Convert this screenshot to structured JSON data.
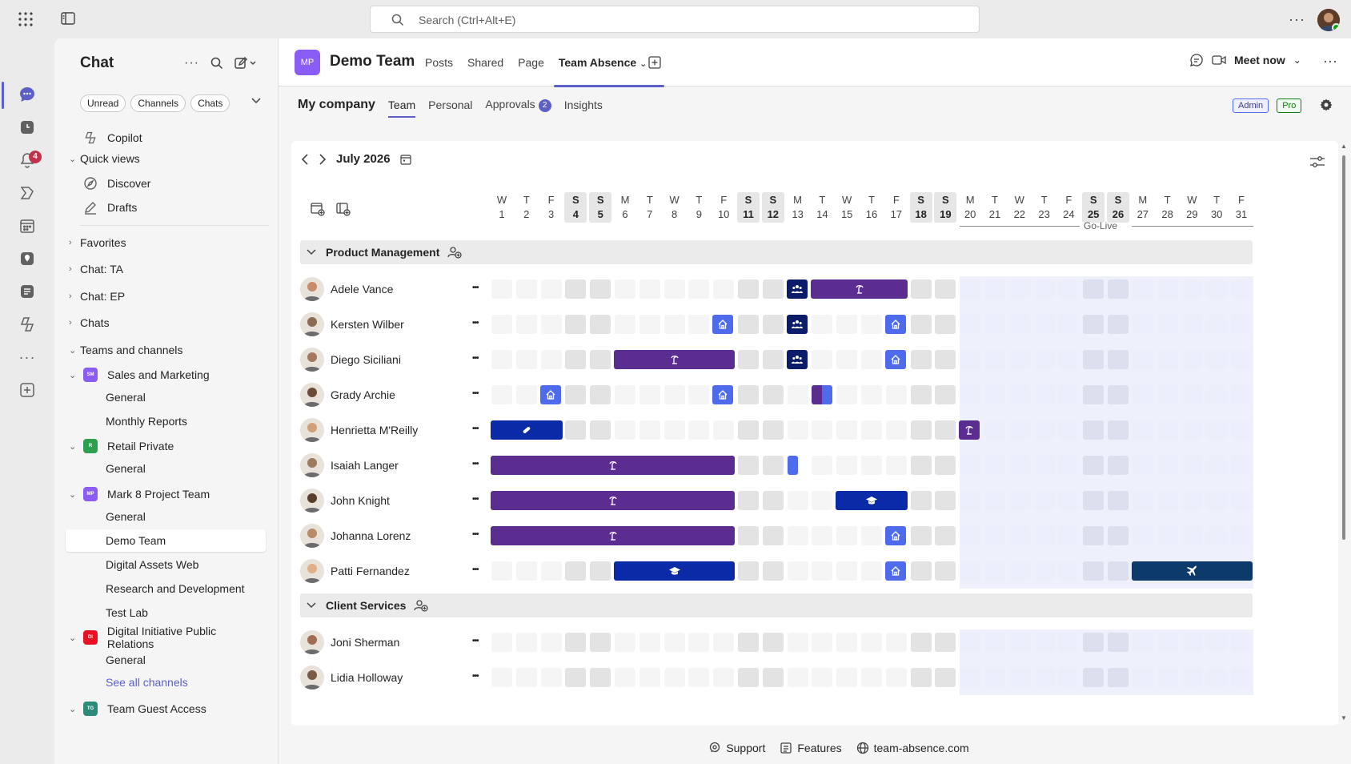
{
  "search": {
    "placeholder": "Search (Ctrl+Alt+E)"
  },
  "rail": {
    "notifications_count": "4"
  },
  "chat_pane": {
    "title": "Chat",
    "filters": [
      "Unread",
      "Channels",
      "Chats"
    ],
    "copilot": "Copilot",
    "quick_views": "Quick views",
    "discover": "Discover",
    "drafts": "Drafts",
    "favorites": "Favorites",
    "chat_ta": "Chat: TA",
    "chat_ep": "Chat: EP",
    "chats": "Chats",
    "teams_and_channels": "Teams and channels",
    "teams": [
      {
        "abbr": "SM",
        "name": "Sales and Marketing",
        "color": "#8b5cf6",
        "channels": [
          "General",
          "Monthly Reports"
        ]
      },
      {
        "abbr": "R",
        "name": "Retail Private",
        "color": "#2e9e4f",
        "channels": [
          "General"
        ]
      },
      {
        "abbr": "MP",
        "name": "Mark 8 Project Team",
        "color": "#8b5cf6",
        "channels": [
          "General",
          "Demo Team",
          "Digital Assets Web",
          "Research and Development",
          "Test Lab"
        ]
      },
      {
        "abbr": "DI",
        "name": "Digital Initiative Public Relations",
        "color": "#e81123",
        "channels": [
          "General"
        ]
      },
      {
        "abbr": "TG",
        "name": "Team Guest Access",
        "color": "#2e8b7a",
        "channels": []
      }
    ],
    "see_all_channels": "See all channels"
  },
  "channel_header": {
    "logo": "MP",
    "team_name": "Demo Team",
    "tabs": [
      "Posts",
      "Shared",
      "Page"
    ],
    "active_tab": "Team Absence",
    "meet_now": "Meet now"
  },
  "app": {
    "company": "My company",
    "tabs": {
      "team": "Team",
      "personal": "Personal",
      "approvals": "Approvals",
      "insights": "Insights"
    },
    "approvals_count": "2",
    "admin": "Admin",
    "pro": "Pro",
    "month": "July 2026",
    "go_live": "Go-Live",
    "colors": {
      "vacation": "#5c2d91",
      "team": "#0b1c6b",
      "home": "#4f6bed",
      "training": "#0a2aa8",
      "travel": "#0b3a6b"
    }
  },
  "days": [
    {
      "d": "W",
      "n": "1"
    },
    {
      "d": "T",
      "n": "2"
    },
    {
      "d": "F",
      "n": "3"
    },
    {
      "d": "S",
      "n": "4",
      "we": true
    },
    {
      "d": "S",
      "n": "5",
      "we": true
    },
    {
      "d": "M",
      "n": "6"
    },
    {
      "d": "T",
      "n": "7"
    },
    {
      "d": "W",
      "n": "8"
    },
    {
      "d": "T",
      "n": "9"
    },
    {
      "d": "F",
      "n": "10"
    },
    {
      "d": "S",
      "n": "11",
      "we": true
    },
    {
      "d": "S",
      "n": "12",
      "we": true
    },
    {
      "d": "M",
      "n": "13"
    },
    {
      "d": "T",
      "n": "14"
    },
    {
      "d": "W",
      "n": "15"
    },
    {
      "d": "T",
      "n": "16"
    },
    {
      "d": "F",
      "n": "17"
    },
    {
      "d": "S",
      "n": "18",
      "we": true
    },
    {
      "d": "S",
      "n": "19",
      "we": true
    },
    {
      "d": "M",
      "n": "20"
    },
    {
      "d": "T",
      "n": "21"
    },
    {
      "d": "W",
      "n": "22"
    },
    {
      "d": "T",
      "n": "23"
    },
    {
      "d": "F",
      "n": "24"
    },
    {
      "d": "S",
      "n": "25",
      "we": true
    },
    {
      "d": "S",
      "n": "26",
      "we": true
    },
    {
      "d": "M",
      "n": "27"
    },
    {
      "d": "T",
      "n": "28"
    },
    {
      "d": "W",
      "n": "29"
    },
    {
      "d": "T",
      "n": "30"
    },
    {
      "d": "F",
      "n": "31"
    }
  ],
  "groups": [
    {
      "name": "Product Management",
      "members": [
        {
          "name": "Adele Vance",
          "absences": [
            {
              "start": 13,
              "end": 13,
              "type": "team"
            },
            {
              "start": 14,
              "end": 17,
              "type": "vacation"
            }
          ]
        },
        {
          "name": "Kersten Wilber",
          "absences": [
            {
              "start": 10,
              "end": 10,
              "type": "home"
            },
            {
              "start": 13,
              "end": 13,
              "type": "team"
            },
            {
              "start": 17,
              "end": 17,
              "type": "home"
            }
          ]
        },
        {
          "name": "Diego Siciliani",
          "absences": [
            {
              "start": 6,
              "end": 10,
              "type": "vacation"
            },
            {
              "start": 13,
              "end": 13,
              "type": "team"
            },
            {
              "start": 17,
              "end": 17,
              "type": "home"
            }
          ]
        },
        {
          "name": "Grady Archie",
          "absences": [
            {
              "start": 3,
              "end": 3,
              "type": "home"
            },
            {
              "start": 10,
              "end": 10,
              "type": "home"
            },
            {
              "start": 14,
              "end": 14,
              "type": "split"
            }
          ]
        },
        {
          "name": "Henrietta M'Reilly",
          "absences": [
            {
              "start": 1,
              "end": 3,
              "type": "sick"
            },
            {
              "start": 20,
              "end": 20,
              "type": "vacation"
            }
          ]
        },
        {
          "name": "Isaiah Langer",
          "absences": [
            {
              "start": 1,
              "end": 10,
              "type": "vacation"
            },
            {
              "start": 13,
              "end": 13,
              "type": "half"
            }
          ]
        },
        {
          "name": "John Knight",
          "absences": [
            {
              "start": 1,
              "end": 10,
              "type": "vacation"
            },
            {
              "start": 15,
              "end": 17,
              "type": "training"
            }
          ]
        },
        {
          "name": "Johanna Lorenz",
          "absences": [
            {
              "start": 1,
              "end": 10,
              "type": "vacation"
            },
            {
              "start": 17,
              "end": 17,
              "type": "home"
            }
          ]
        },
        {
          "name": "Patti Fernandez",
          "absences": [
            {
              "start": 6,
              "end": 10,
              "type": "training"
            },
            {
              "start": 17,
              "end": 17,
              "type": "home"
            },
            {
              "start": 27,
              "end": 31,
              "type": "travel"
            }
          ]
        }
      ]
    },
    {
      "name": "Client Services",
      "members": [
        {
          "name": "Joni Sherman",
          "absences": []
        },
        {
          "name": "Lidia Holloway",
          "absences": []
        }
      ]
    }
  ],
  "footer": {
    "support": "Support",
    "features": "Features",
    "site": "team-absence.com"
  }
}
